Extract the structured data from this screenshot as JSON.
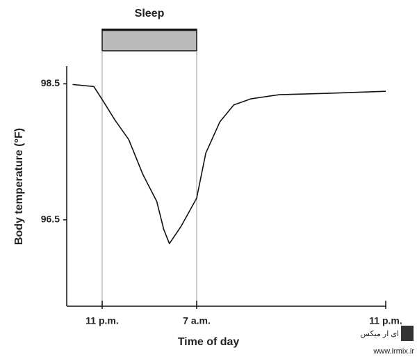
{
  "chart_data": {
    "type": "line",
    "xlabel": "Time of day",
    "ylabel": "Body temperature (°F)",
    "x": [
      -2.5,
      -0.71,
      0,
      1.07,
      2.25,
      3.44,
      4.62,
      5.21,
      5.69,
      6.7,
      8,
      8.77,
      9.96,
      11.14,
      12.62,
      14.99,
      19.14,
      24
    ],
    "series": [
      {
        "color": "#111111",
        "values": [
          98.49,
          98.46,
          98.27,
          97.97,
          97.68,
          97.17,
          96.77,
          96.36,
          96.15,
          96.41,
          96.82,
          97.48,
          97.94,
          98.19,
          98.28,
          98.34,
          98.36,
          98.39
        ]
      }
    ],
    "xlim": [
      -3,
      24
    ],
    "ylim": [
      95.23,
      98.76
    ],
    "xticks": [
      {
        "value": 0,
        "label": "11 p.m."
      },
      {
        "value": 8,
        "label": "7 a.m."
      },
      {
        "value": 24,
        "label": "11 p.m."
      }
    ],
    "yticks": [
      98.5,
      96.5
    ],
    "band": {
      "label": "Sleep",
      "start": 0,
      "end": 8,
      "color": "#bbbbbb"
    }
  },
  "watermark": {
    "text": "ای ار میکس",
    "url": "www.irmix.ir"
  }
}
